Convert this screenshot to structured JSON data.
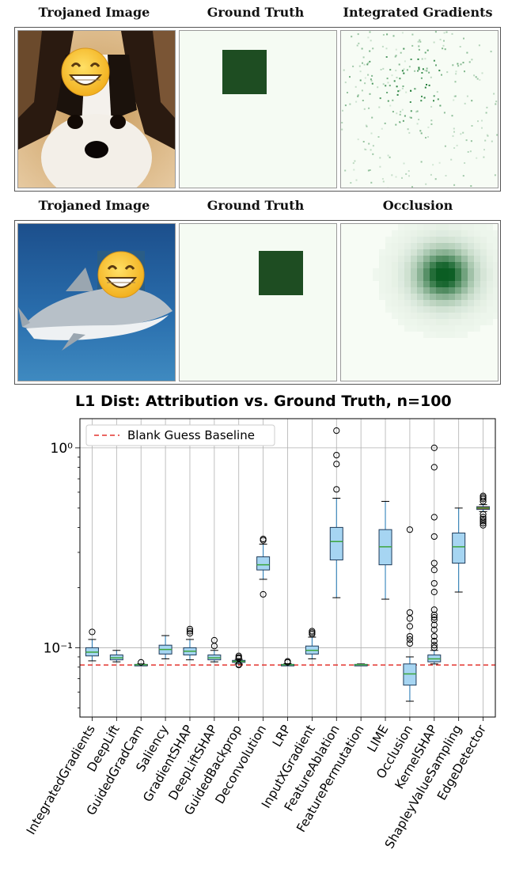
{
  "row1": {
    "titles": [
      "Trojaned Image",
      "Ground Truth",
      "Integrated Gradients"
    ]
  },
  "row2": {
    "titles": [
      "Trojaned Image",
      "Ground Truth",
      "Occlusion"
    ]
  },
  "chart_data": {
    "type": "box",
    "title": "L1 Dist: Attribution vs. Ground Truth, n=100",
    "yscale": "log",
    "ylim": [
      0.045,
      1.4
    ],
    "ytick_labels": [
      "10⁻¹",
      "10⁰"
    ],
    "grid": true,
    "legend": {
      "position": "top-left",
      "entries": [
        "Blank Guess Baseline"
      ]
    },
    "baseline": {
      "name": "Blank Guess Baseline",
      "value": 0.082,
      "color": "#e3342f"
    },
    "categories": [
      "IntegratedGradients",
      "DeepLift",
      "GuidedGradCam",
      "Saliency",
      "GradientSHAP",
      "DeepLiftSHAP",
      "GuidedBackprop",
      "Deconvolution",
      "LRP",
      "InputXGradient",
      "FeatureAblation",
      "FeaturePermutation",
      "LIME",
      "Occlusion",
      "KernelSHAP",
      "ShapleyValueSampling",
      "EdgeDetector"
    ],
    "boxes": [
      {
        "whislo": 0.086,
        "q1": 0.091,
        "med": 0.095,
        "q3": 0.1,
        "whishi": 0.11,
        "fliers": [
          0.12
        ]
      },
      {
        "whislo": 0.085,
        "q1": 0.087,
        "med": 0.089,
        "q3": 0.092,
        "whishi": 0.097,
        "fliers": []
      },
      {
        "whislo": 0.0815,
        "q1": 0.0818,
        "med": 0.0822,
        "q3": 0.0826,
        "whishi": 0.083,
        "fliers": [
          0.0845
        ]
      },
      {
        "whislo": 0.088,
        "q1": 0.093,
        "med": 0.098,
        "q3": 0.103,
        "whishi": 0.115,
        "fliers": []
      },
      {
        "whislo": 0.087,
        "q1": 0.092,
        "med": 0.096,
        "q3": 0.1,
        "whishi": 0.11,
        "fliers": [
          0.118,
          0.121,
          0.124
        ]
      },
      {
        "whislo": 0.085,
        "q1": 0.087,
        "med": 0.089,
        "q3": 0.092,
        "whishi": 0.097,
        "fliers": [
          0.102,
          0.109
        ]
      },
      {
        "whislo": 0.083,
        "q1": 0.0845,
        "med": 0.0855,
        "q3": 0.0865,
        "whishi": 0.0875,
        "fliers": [
          0.082,
          0.0825,
          0.0885,
          0.0895,
          0.091
        ]
      },
      {
        "whislo": 0.22,
        "q1": 0.245,
        "med": 0.26,
        "q3": 0.285,
        "whishi": 0.33,
        "fliers": [
          0.185,
          0.345,
          0.35
        ]
      },
      {
        "whislo": 0.0815,
        "q1": 0.0818,
        "med": 0.0822,
        "q3": 0.0826,
        "whishi": 0.0832,
        "fliers": [
          0.0845,
          0.0855
        ]
      },
      {
        "whislo": 0.088,
        "q1": 0.093,
        "med": 0.097,
        "q3": 0.102,
        "whishi": 0.113,
        "fliers": [
          0.117,
          0.119,
          0.121
        ]
      },
      {
        "whislo": 0.178,
        "q1": 0.275,
        "med": 0.34,
        "q3": 0.4,
        "whishi": 0.56,
        "fliers": [
          0.62,
          0.83,
          0.92,
          1.22
        ]
      },
      {
        "whislo": 0.0815,
        "q1": 0.0818,
        "med": 0.0822,
        "q3": 0.0826,
        "whishi": 0.083,
        "fliers": []
      },
      {
        "whislo": 0.175,
        "q1": 0.26,
        "med": 0.32,
        "q3": 0.39,
        "whishi": 0.54,
        "fliers": []
      },
      {
        "whislo": 0.054,
        "q1": 0.065,
        "med": 0.074,
        "q3": 0.083,
        "whishi": 0.09,
        "fliers": [
          0.105,
          0.11,
          0.114,
          0.128,
          0.14,
          0.15,
          0.39
        ]
      },
      {
        "whislo": 0.083,
        "q1": 0.085,
        "med": 0.088,
        "q3": 0.092,
        "whishi": 0.097,
        "fliers": [
          0.1,
          0.103,
          0.108,
          0.114,
          0.123,
          0.13,
          0.138,
          0.142,
          0.146,
          0.155,
          0.19,
          0.21,
          0.245,
          0.265,
          0.36,
          0.45,
          0.8,
          1.0
        ]
      },
      {
        "whislo": 0.19,
        "q1": 0.265,
        "med": 0.32,
        "q3": 0.375,
        "whishi": 0.5,
        "fliers": []
      },
      {
        "whislo": 0.48,
        "q1": 0.492,
        "med": 0.5,
        "q3": 0.508,
        "whishi": 0.52,
        "fliers": [
          0.41,
          0.42,
          0.43,
          0.44,
          0.45,
          0.465,
          0.54,
          0.555,
          0.565,
          0.575
        ]
      }
    ],
    "colors": {
      "box_fill": "#a6d5f2",
      "box_edge": "#1f3b5a",
      "median": "#3ca53c",
      "whisker": "#1f77b4",
      "edge_box_fill": "#c0392b"
    }
  }
}
